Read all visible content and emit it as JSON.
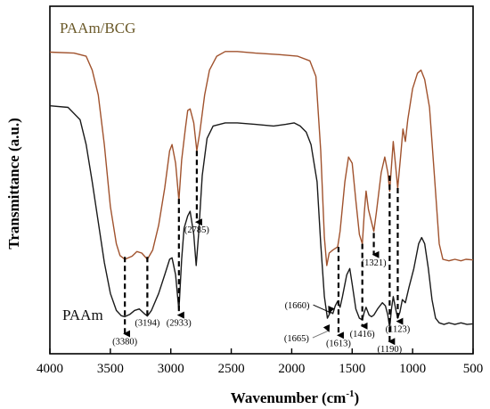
{
  "chart_data": {
    "type": "line",
    "xlabel": "Wavenumber (cm",
    "xlabel_sup": "-1",
    "xlabel_tail": ")",
    "ylabel": "Transmittance (a.u.)",
    "xlim": [
      4000,
      500
    ],
    "x_reversed": true,
    "ylim": [
      0,
      1
    ],
    "y_ticks_shown": false,
    "grid": false,
    "x_ticks": [
      4000,
      3500,
      3000,
      2500,
      2000,
      1500,
      1000,
      500
    ],
    "x_tick_labels": [
      "4000",
      "3500",
      "3000",
      "2500",
      "2000",
      "1500",
      "1000",
      "500"
    ],
    "series": [
      {
        "name": "PAAm/BCG",
        "color": "#a0522d",
        "label_color": "#6b5a2a",
        "points": [
          [
            4000,
            0.918
          ],
          [
            3800,
            0.915
          ],
          [
            3700,
            0.905
          ],
          [
            3650,
            0.86
          ],
          [
            3600,
            0.78
          ],
          [
            3550,
            0.62
          ],
          [
            3500,
            0.42
          ],
          [
            3450,
            0.3
          ],
          [
            3420,
            0.262
          ],
          [
            3380,
            0.25
          ],
          [
            3320,
            0.26
          ],
          [
            3280,
            0.275
          ],
          [
            3240,
            0.27
          ],
          [
            3194,
            0.25
          ],
          [
            3150,
            0.28
          ],
          [
            3100,
            0.36
          ],
          [
            3050,
            0.48
          ],
          [
            3010,
            0.6
          ],
          [
            2990,
            0.62
          ],
          [
            2960,
            0.56
          ],
          [
            2933,
            0.44
          ],
          [
            2910,
            0.57
          ],
          [
            2880,
            0.67
          ],
          [
            2860,
            0.73
          ],
          [
            2840,
            0.735
          ],
          [
            2810,
            0.69
          ],
          [
            2785,
            0.6
          ],
          [
            2760,
            0.66
          ],
          [
            2720,
            0.78
          ],
          [
            2680,
            0.86
          ],
          [
            2620,
            0.905
          ],
          [
            2550,
            0.92
          ],
          [
            2450,
            0.92
          ],
          [
            2300,
            0.915
          ],
          [
            2100,
            0.91
          ],
          [
            1950,
            0.905
          ],
          [
            1850,
            0.89
          ],
          [
            1800,
            0.84
          ],
          [
            1760,
            0.6
          ],
          [
            1730,
            0.32
          ],
          [
            1710,
            0.23
          ],
          [
            1690,
            0.27
          ],
          [
            1660,
            0.28
          ],
          [
            1620,
            0.29
          ],
          [
            1600,
            0.34
          ],
          [
            1560,
            0.5
          ],
          [
            1530,
            0.58
          ],
          [
            1500,
            0.56
          ],
          [
            1470,
            0.44
          ],
          [
            1440,
            0.33
          ],
          [
            1416,
            0.3
          ],
          [
            1400,
            0.4
          ],
          [
            1385,
            0.47
          ],
          [
            1365,
            0.41
          ],
          [
            1340,
            0.37
          ],
          [
            1321,
            0.34
          ],
          [
            1300,
            0.4
          ],
          [
            1260,
            0.53
          ],
          [
            1230,
            0.58
          ],
          [
            1205,
            0.53
          ],
          [
            1190,
            0.47
          ],
          [
            1175,
            0.55
          ],
          [
            1160,
            0.63
          ],
          [
            1140,
            0.55
          ],
          [
            1123,
            0.48
          ],
          [
            1100,
            0.58
          ],
          [
            1080,
            0.67
          ],
          [
            1060,
            0.63
          ],
          [
            1040,
            0.7
          ],
          [
            1000,
            0.8
          ],
          [
            960,
            0.85
          ],
          [
            930,
            0.86
          ],
          [
            900,
            0.83
          ],
          [
            860,
            0.74
          ],
          [
            820,
            0.52
          ],
          [
            780,
            0.3
          ],
          [
            750,
            0.25
          ],
          [
            700,
            0.245
          ],
          [
            650,
            0.25
          ],
          [
            600,
            0.245
          ],
          [
            560,
            0.25
          ],
          [
            500,
            0.248
          ]
        ]
      },
      {
        "name": "PAAm",
        "color": "#1a1a1a",
        "label_color": "#111111",
        "points": [
          [
            4000,
            0.745
          ],
          [
            3850,
            0.74
          ],
          [
            3750,
            0.7
          ],
          [
            3700,
            0.62
          ],
          [
            3650,
            0.5
          ],
          [
            3600,
            0.37
          ],
          [
            3550,
            0.24
          ],
          [
            3500,
            0.14
          ],
          [
            3450,
            0.085
          ],
          [
            3410,
            0.068
          ],
          [
            3380,
            0.065
          ],
          [
            3340,
            0.072
          ],
          [
            3300,
            0.085
          ],
          [
            3260,
            0.09
          ],
          [
            3220,
            0.075
          ],
          [
            3194,
            0.067
          ],
          [
            3160,
            0.085
          ],
          [
            3100,
            0.14
          ],
          [
            3050,
            0.2
          ],
          [
            3010,
            0.25
          ],
          [
            2990,
            0.255
          ],
          [
            2960,
            0.2
          ],
          [
            2933,
            0.085
          ],
          [
            2910,
            0.25
          ],
          [
            2890,
            0.35
          ],
          [
            2860,
            0.39
          ],
          [
            2840,
            0.405
          ],
          [
            2810,
            0.33
          ],
          [
            2790,
            0.23
          ],
          [
            2770,
            0.33
          ],
          [
            2740,
            0.52
          ],
          [
            2700,
            0.64
          ],
          [
            2650,
            0.68
          ],
          [
            2550,
            0.69
          ],
          [
            2450,
            0.69
          ],
          [
            2300,
            0.685
          ],
          [
            2150,
            0.68
          ],
          [
            2050,
            0.685
          ],
          [
            1980,
            0.69
          ],
          [
            1930,
            0.68
          ],
          [
            1880,
            0.66
          ],
          [
            1840,
            0.62
          ],
          [
            1790,
            0.5
          ],
          [
            1760,
            0.3
          ],
          [
            1730,
            0.13
          ],
          [
            1705,
            0.06
          ],
          [
            1680,
            0.08
          ],
          [
            1660,
            0.075
          ],
          [
            1640,
            0.1
          ],
          [
            1620,
            0.115
          ],
          [
            1600,
            0.095
          ],
          [
            1580,
            0.13
          ],
          [
            1545,
            0.2
          ],
          [
            1520,
            0.22
          ],
          [
            1500,
            0.17
          ],
          [
            1470,
            0.09
          ],
          [
            1440,
            0.06
          ],
          [
            1416,
            0.055
          ],
          [
            1400,
            0.08
          ],
          [
            1385,
            0.095
          ],
          [
            1360,
            0.07
          ],
          [
            1340,
            0.065
          ],
          [
            1321,
            0.07
          ],
          [
            1290,
            0.09
          ],
          [
            1250,
            0.11
          ],
          [
            1225,
            0.1
          ],
          [
            1205,
            0.07
          ],
          [
            1190,
            0.03
          ],
          [
            1175,
            0.09
          ],
          [
            1160,
            0.13
          ],
          [
            1140,
            0.09
          ],
          [
            1123,
            0.06
          ],
          [
            1105,
            0.08
          ],
          [
            1085,
            0.12
          ],
          [
            1060,
            0.11
          ],
          [
            1030,
            0.16
          ],
          [
            990,
            0.22
          ],
          [
            950,
            0.3
          ],
          [
            925,
            0.32
          ],
          [
            900,
            0.3
          ],
          [
            870,
            0.22
          ],
          [
            840,
            0.12
          ],
          [
            810,
            0.06
          ],
          [
            780,
            0.045
          ],
          [
            740,
            0.04
          ],
          [
            700,
            0.045
          ],
          [
            650,
            0.04
          ],
          [
            600,
            0.045
          ],
          [
            550,
            0.04
          ],
          [
            500,
            0.042
          ]
        ]
      }
    ],
    "vlines": [
      {
        "x": 3380,
        "y_top": 0.258,
        "y_bottom": 0.01,
        "label": "(3380)",
        "label_pos": "below",
        "arrow": true
      },
      {
        "x": 3194,
        "y_top": 0.258,
        "y_bottom": 0.07,
        "label": "(3194)",
        "label_pos": "below",
        "arrow": false
      },
      {
        "x": 2933,
        "y_top": 0.445,
        "y_bottom": 0.07,
        "label": "(2933)",
        "label_pos": "below",
        "arrow": true
      },
      {
        "x": 2785,
        "y_top": 0.6,
        "y_bottom": 0.37,
        "label": "(2785)",
        "label_pos": "below",
        "arrow": true
      },
      {
        "x": 1613,
        "y_top": 0.29,
        "y_bottom": 0.005,
        "label": "(1613)",
        "label_pos": "below",
        "arrow": true
      },
      {
        "x": 1416,
        "y_top": 0.3,
        "y_bottom": 0.035,
        "label": "(1416)",
        "label_pos": "below",
        "arrow": true
      },
      {
        "x": 1321,
        "y_top": 0.335,
        "y_bottom": 0.265,
        "label": "(1321)",
        "label_pos": "above",
        "arrow": true
      },
      {
        "x": 1190,
        "y_top": 0.52,
        "y_bottom": -0.015,
        "label": "(1190)",
        "label_pos": "below",
        "arrow": true
      },
      {
        "x": 1123,
        "y_top": 0.48,
        "y_bottom": 0.05,
        "label": "(1123)",
        "label_pos": "below",
        "arrow": true
      }
    ],
    "side_labels": [
      {
        "label": "(1660)",
        "x": 1660,
        "y": 0.08
      },
      {
        "label": "(1665)",
        "x": 1665,
        "y": 0.02
      }
    ]
  }
}
